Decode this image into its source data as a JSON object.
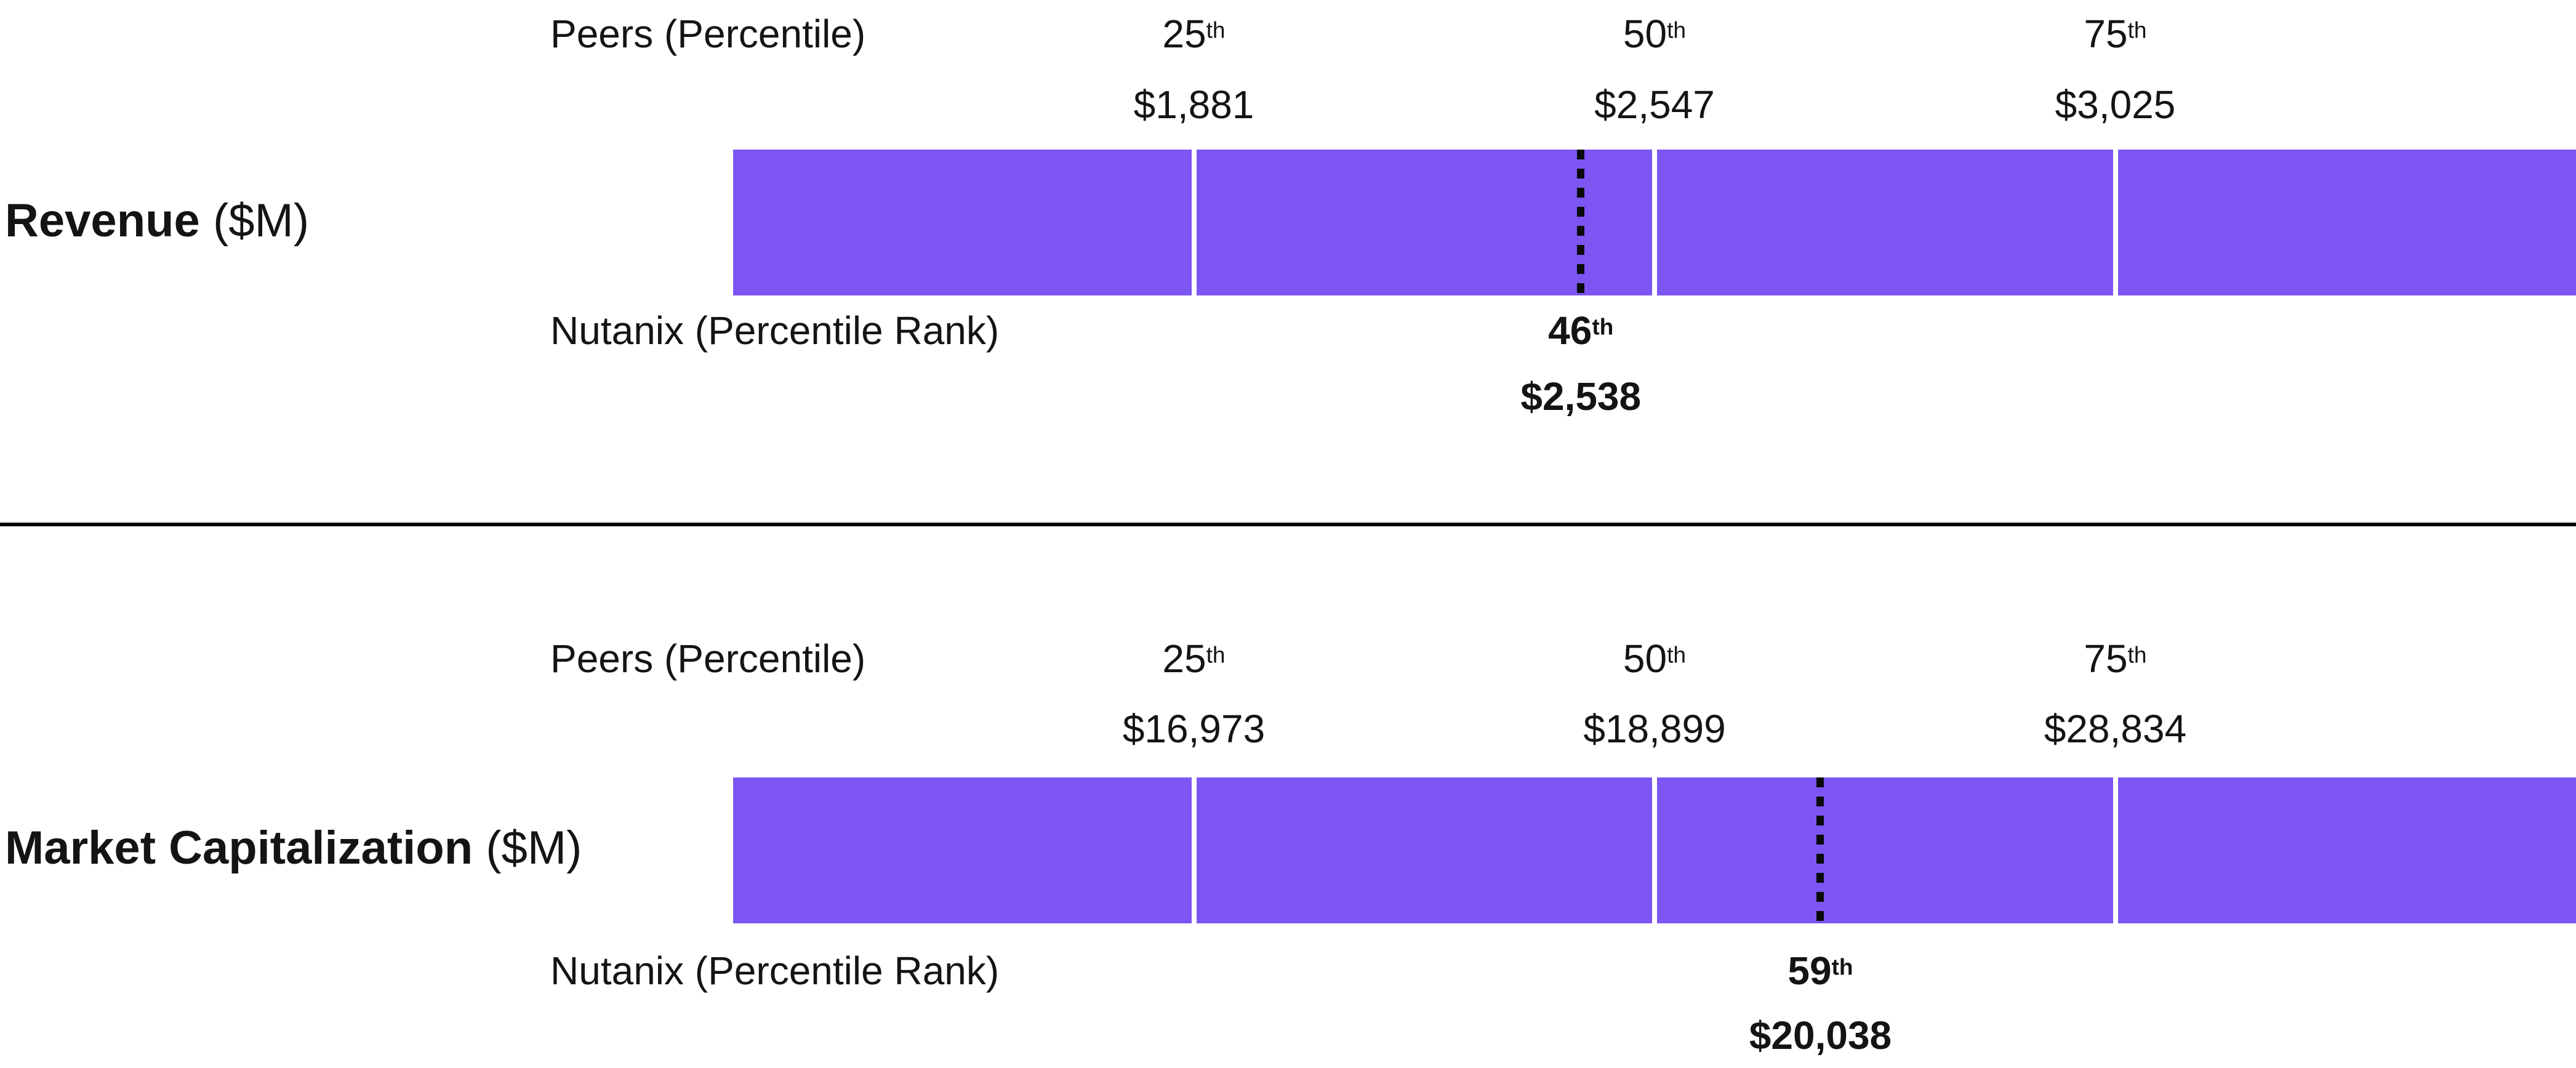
{
  "colors": {
    "bar_fill": "#7C55F3",
    "quartile_divider": "#ffffff",
    "rank_marker": "#0a0a0a",
    "text": "#141414",
    "separator": "#000000"
  },
  "sections": [
    {
      "title": "Revenue",
      "title_suffix": "($M)",
      "peers_label": "Peers (Percentile)",
      "nutanix_label": "Nutanix (Percentile Rank)",
      "percentiles": [
        {
          "rank": "25",
          "ordinal": "th",
          "value": "$1,881"
        },
        {
          "rank": "50",
          "ordinal": "th",
          "value": "$2,547"
        },
        {
          "rank": "75",
          "ordinal": "th",
          "value": "$3,025"
        }
      ],
      "marker": {
        "rank": "46",
        "ordinal": "th",
        "value": "$2,538",
        "percentile": 46
      }
    },
    {
      "title": "Market Capitalization",
      "title_suffix": "($M)",
      "peers_label": "Peers (Percentile)",
      "nutanix_label": "Nutanix (Percentile Rank)",
      "percentiles": [
        {
          "rank": "25",
          "ordinal": "th",
          "value": "$16,973"
        },
        {
          "rank": "50",
          "ordinal": "th",
          "value": "$18,899"
        },
        {
          "rank": "75",
          "ordinal": "th",
          "value": "$28,834"
        }
      ],
      "marker": {
        "rank": "59",
        "ordinal": "th",
        "value": "$20,038",
        "percentile": 59
      }
    }
  ],
  "chart_data": {
    "type": "bar",
    "subtype": "percentile-benchmark-strips",
    "charts": [
      {
        "title": "Revenue ($M)",
        "peer_series_label": "Peers (Percentile)",
        "subject_series_label": "Nutanix (Percentile Rank)",
        "peer_percentiles": {
          "p25": 1881,
          "p50": 2547,
          "p75": 3025
        },
        "subject": {
          "percentile_rank": 46,
          "value": 2538
        },
        "axis_range_percentile": [
          0,
          100
        ],
        "quartile_dividers_at": [
          25,
          50,
          75
        ]
      },
      {
        "title": "Market Capitalization ($M)",
        "peer_series_label": "Peers (Percentile)",
        "subject_series_label": "Nutanix (Percentile Rank)",
        "peer_percentiles": {
          "p25": 16973,
          "p50": 18899,
          "p75": 28834
        },
        "subject": {
          "percentile_rank": 59,
          "value": 20038
        },
        "axis_range_percentile": [
          0,
          100
        ],
        "quartile_dividers_at": [
          25,
          50,
          75
        ]
      }
    ],
    "legend_position": "none",
    "grid": false
  }
}
